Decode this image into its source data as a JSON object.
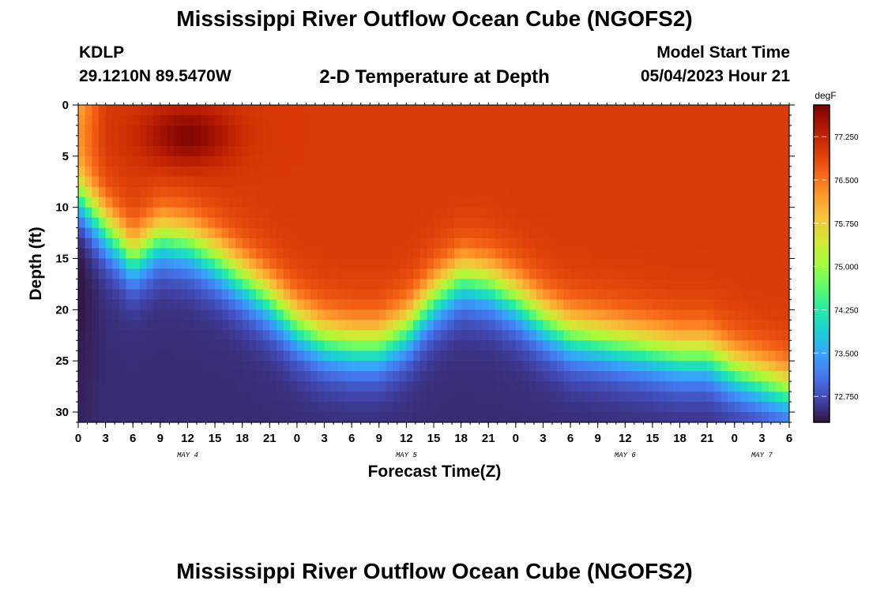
{
  "header": {
    "title": "Mississippi River Outflow Ocean Cube (NGOFS2)",
    "station": "KDLP",
    "coords": "29.1210N  89.5470W",
    "subtitle": "2-D Temperature at Depth",
    "model_start_label": "Model Start Time",
    "model_start_value": "05/04/2023 Hour 21"
  },
  "footer": {
    "title": "Mississippi River Outflow Ocean Cube (NGOFS2)"
  },
  "colors": {
    "colormap": [
      "#30123b",
      "#4145ab",
      "#4675ed",
      "#39a2fc",
      "#1bcfd4",
      "#24eca6",
      "#61fc6c",
      "#a4fc3b",
      "#d1e834",
      "#f3c63a",
      "#fe9b2d",
      "#f36315",
      "#d93806",
      "#b11901",
      "#7a0402"
    ]
  },
  "chart_data": {
    "type": "heatmap",
    "title": "2-D Temperature at Depth",
    "xlabel": "Forecast Time(Z)",
    "ylabel": "Depth (ft)",
    "x_unit": "hours from 00Z May 4",
    "xlim": [
      0,
      78
    ],
    "ylim": [
      31,
      0
    ],
    "x_ticks": [
      0,
      3,
      6,
      9,
      12,
      15,
      18,
      21,
      24,
      27,
      30,
      33,
      36,
      39,
      42,
      45,
      48,
      51,
      54,
      57,
      60,
      63,
      66,
      69,
      72,
      75,
      78
    ],
    "x_tick_labels": [
      "0",
      "3",
      "6",
      "9",
      "12",
      "15",
      "18",
      "21",
      "0",
      "3",
      "6",
      "9",
      "12",
      "15",
      "18",
      "21",
      "0",
      "3",
      "6",
      "9",
      "12",
      "15",
      "18",
      "21",
      "0",
      "3",
      "6"
    ],
    "y_ticks": [
      0,
      5,
      10,
      15,
      20,
      25,
      30
    ],
    "y_tick_labels": [
      "0",
      "5",
      "10",
      "15",
      "20",
      "25",
      "30"
    ],
    "day_labels": [
      {
        "x": 12,
        "text": "MAY 4"
      },
      {
        "x": 36,
        "text": "MAY 5"
      },
      {
        "x": 60,
        "text": "MAY 6"
      },
      {
        "x": 75,
        "text": "MAY 7"
      }
    ],
    "colorbar": {
      "unit": "degF",
      "min": 72.3,
      "max": 77.8,
      "ticks": [
        72.75,
        73.5,
        74.25,
        75.0,
        75.75,
        76.5,
        77.25
      ],
      "tick_labels": [
        "72.750",
        "73.500",
        "74.250",
        "75.000",
        "75.750",
        "76.500",
        "77.250"
      ]
    },
    "thermocline_depth_ft": {
      "hours": [
        0,
        3,
        6,
        9,
        12,
        15,
        18,
        21,
        24,
        27,
        30,
        33,
        36,
        39,
        42,
        45,
        48,
        51,
        54,
        57,
        60,
        63,
        66,
        69,
        72,
        75,
        78
      ],
      "depth": [
        9,
        12,
        15,
        13,
        13.5,
        15,
        17,
        19,
        21.5,
        23,
        23.5,
        23.5,
        22,
        19,
        17,
        17.5,
        19,
        21,
        22.5,
        23,
        23.5,
        24,
        24.5,
        24.5,
        26,
        27,
        28
      ]
    },
    "surface_hot_spot": {
      "hour": 12,
      "depth_ft": 3,
      "temp_degF": 77.75
    },
    "surface_temp_degF": 77.0,
    "bottom_temp_degF": 72.5
  }
}
